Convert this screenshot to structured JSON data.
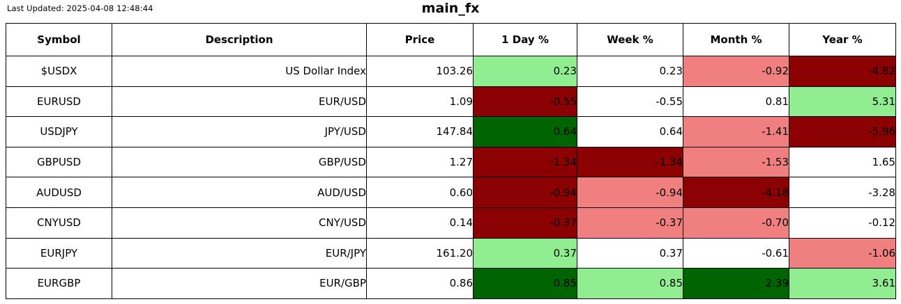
{
  "header": {
    "last_updated": "Last Updated: 2025-04-08 12:48:44",
    "title": "main_fx"
  },
  "colors": {
    "up_strong": "#006400",
    "up": "#90EE90",
    "neutral": "#FFFFFF",
    "down": "#F08080",
    "down_strong": "#8B0000",
    "border": "#000000",
    "text": "#000000"
  },
  "chart_data": {
    "type": "table",
    "title": "main_fx",
    "columns": [
      "Symbol",
      "Description",
      "Price",
      "1 Day %",
      "Week %",
      "Month %",
      "Year %"
    ],
    "rows": [
      {
        "symbol": "$USDX",
        "description": "US Dollar Index",
        "price": "103.26",
        "changes": [
          {
            "label": "1 Day %",
            "value": "0.23",
            "tone": "up"
          },
          {
            "label": "Week %",
            "value": "0.23",
            "tone": "neutral"
          },
          {
            "label": "Month %",
            "value": "-0.92",
            "tone": "down"
          },
          {
            "label": "Year %",
            "value": "-4.82",
            "tone": "down_strong"
          }
        ]
      },
      {
        "symbol": "EURUSD",
        "description": "EUR/USD",
        "price": "1.09",
        "changes": [
          {
            "label": "1 Day %",
            "value": "-0.55",
            "tone": "down_strong"
          },
          {
            "label": "Week %",
            "value": "-0.55",
            "tone": "neutral"
          },
          {
            "label": "Month %",
            "value": "0.81",
            "tone": "neutral"
          },
          {
            "label": "Year %",
            "value": "5.31",
            "tone": "up"
          }
        ]
      },
      {
        "symbol": "USDJPY",
        "description": "JPY/USD",
        "price": "147.84",
        "changes": [
          {
            "label": "1 Day %",
            "value": "0.64",
            "tone": "up_strong"
          },
          {
            "label": "Week %",
            "value": "0.64",
            "tone": "neutral"
          },
          {
            "label": "Month %",
            "value": "-1.41",
            "tone": "down"
          },
          {
            "label": "Year %",
            "value": "-5.96",
            "tone": "down_strong"
          }
        ]
      },
      {
        "symbol": "GBPUSD",
        "description": "GBP/USD",
        "price": "1.27",
        "changes": [
          {
            "label": "1 Day %",
            "value": "-1.34",
            "tone": "down_strong"
          },
          {
            "label": "Week %",
            "value": "-1.34",
            "tone": "down_strong"
          },
          {
            "label": "Month %",
            "value": "-1.53",
            "tone": "down"
          },
          {
            "label": "Year %",
            "value": "1.65",
            "tone": "neutral"
          }
        ]
      },
      {
        "symbol": "AUDUSD",
        "description": "AUD/USD",
        "price": "0.60",
        "changes": [
          {
            "label": "1 Day %",
            "value": "-0.94",
            "tone": "down_strong"
          },
          {
            "label": "Week %",
            "value": "-0.94",
            "tone": "down"
          },
          {
            "label": "Month %",
            "value": "-4.18",
            "tone": "down_strong"
          },
          {
            "label": "Year %",
            "value": "-3.28",
            "tone": "neutral"
          }
        ]
      },
      {
        "symbol": "CNYUSD",
        "description": "CNY/USD",
        "price": "0.14",
        "changes": [
          {
            "label": "1 Day %",
            "value": "-0.37",
            "tone": "down_strong"
          },
          {
            "label": "Week %",
            "value": "-0.37",
            "tone": "down"
          },
          {
            "label": "Month %",
            "value": "-0.70",
            "tone": "down"
          },
          {
            "label": "Year %",
            "value": "-0.12",
            "tone": "neutral"
          }
        ]
      },
      {
        "symbol": "EURJPY",
        "description": "EUR/JPY",
        "price": "161.20",
        "changes": [
          {
            "label": "1 Day %",
            "value": "0.37",
            "tone": "up"
          },
          {
            "label": "Week %",
            "value": "0.37",
            "tone": "neutral"
          },
          {
            "label": "Month %",
            "value": "-0.61",
            "tone": "neutral"
          },
          {
            "label": "Year %",
            "value": "-1.06",
            "tone": "down"
          }
        ]
      },
      {
        "symbol": "EURGBP",
        "description": "EUR/GBP",
        "price": "0.86",
        "changes": [
          {
            "label": "1 Day %",
            "value": "0.85",
            "tone": "up_strong"
          },
          {
            "label": "Week %",
            "value": "0.85",
            "tone": "up"
          },
          {
            "label": "Month %",
            "value": "2.39",
            "tone": "up_strong"
          },
          {
            "label": "Year %",
            "value": "3.61",
            "tone": "up"
          }
        ]
      }
    ]
  }
}
